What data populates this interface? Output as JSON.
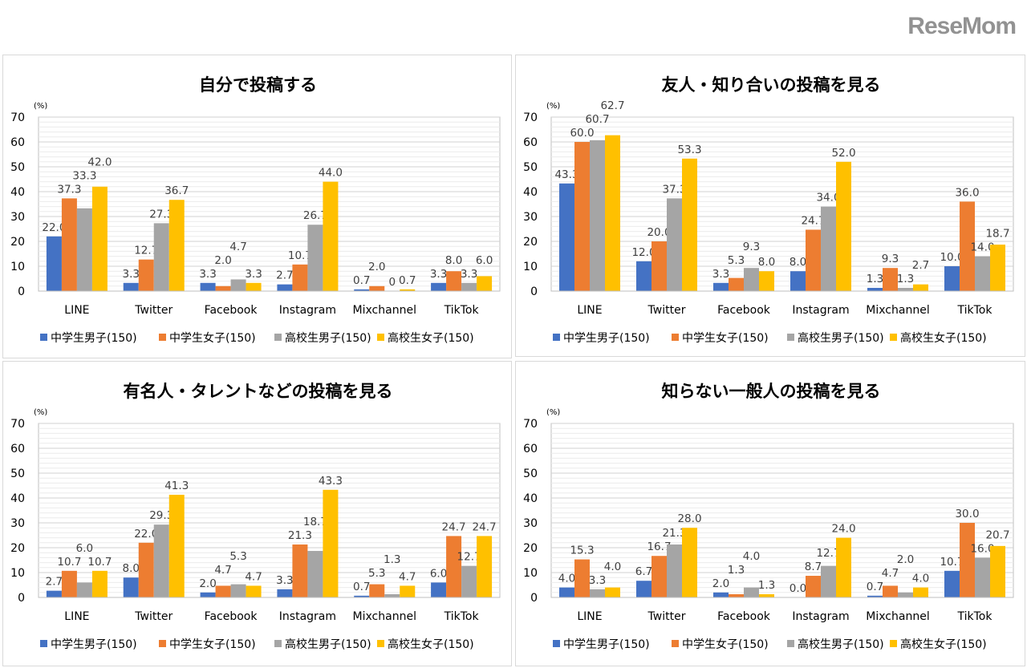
{
  "colors": {
    "series": [
      "#4472c4",
      "#ed7d31",
      "#a5a5a5",
      "#ffc000"
    ],
    "grid_major": "#d0d0d0",
    "grid_minor": "#ececec",
    "label": "#404040"
  },
  "watermark": "ReseMom",
  "chart_data": [
    {
      "type": "bar",
      "title": "自分で投稿する",
      "ylabel": "(%)",
      "ylim": [
        0,
        70
      ],
      "yticks": [
        "0",
        "10",
        "20",
        "30",
        "40",
        "50",
        "60",
        "70"
      ],
      "grid": true,
      "legend_position": "bottom",
      "categories": [
        "LINE",
        "Twitter",
        "Facebook",
        "Instagram",
        "Mixchannel",
        "TikTok"
      ],
      "series": [
        {
          "name": "中学生男子(150)",
          "values": [
            22.0,
            3.3,
            3.3,
            2.7,
            0.7,
            3.3
          ],
          "labels": [
            "22.0",
            "3.3",
            "3.3",
            "2.7",
            "0.7",
            "3.3"
          ]
        },
        {
          "name": "中学生女子(150)",
          "values": [
            37.3,
            12.7,
            2.0,
            10.7,
            2.0,
            8.0
          ],
          "labels": [
            "37.3",
            "12.7",
            "2.0",
            "10.7",
            "2.0",
            "8.0"
          ]
        },
        {
          "name": "高校生男子(150)",
          "values": [
            33.3,
            27.3,
            4.7,
            26.7,
            0,
            3.3
          ],
          "labels": [
            "33.3",
            "27.3",
            "4.7",
            "26.7",
            "0",
            "3.3"
          ]
        },
        {
          "name": "高校生女子(150)",
          "values": [
            42.0,
            36.7,
            3.3,
            44.0,
            0.7,
            6.0
          ],
          "labels": [
            "42.0",
            "36.7",
            "3.3",
            "44.0",
            "0.7",
            "6.0"
          ]
        }
      ]
    },
    {
      "type": "bar",
      "title": "友人・知り合いの投稿を見る",
      "ylabel": "(%)",
      "ylim": [
        0,
        70
      ],
      "yticks": [
        "0",
        "10",
        "20",
        "30",
        "40",
        "50",
        "60",
        "70"
      ],
      "grid": true,
      "legend_position": "bottom",
      "categories": [
        "LINE",
        "Twitter",
        "Facebook",
        "Instagram",
        "Mixchannel",
        "TikTok"
      ],
      "series": [
        {
          "name": "中学生男子(150)",
          "values": [
            43.3,
            12.0,
            3.3,
            8.0,
            1.3,
            10.0
          ],
          "labels": [
            "43.3",
            "12.0",
            "3.3",
            "8.0",
            "1.3",
            "10.0"
          ]
        },
        {
          "name": "中学生女子(150)",
          "values": [
            60.0,
            20.0,
            5.3,
            24.7,
            9.3,
            36.0
          ],
          "labels": [
            "60.0",
            "20.0",
            "5.3",
            "24.7",
            "9.3",
            "36.0"
          ]
        },
        {
          "name": "高校生男子(150)",
          "values": [
            60.7,
            37.3,
            9.3,
            34.0,
            1.3,
            14.0
          ],
          "labels": [
            "60.7",
            "37.3",
            "9.3",
            "34.0",
            "1.3",
            "14.0"
          ]
        },
        {
          "name": "高校生女子(150)",
          "values": [
            62.7,
            53.3,
            8.0,
            52.0,
            2.7,
            18.7
          ],
          "labels": [
            "62.7",
            "53.3",
            "8.0",
            "52.0",
            "2.7",
            "18.7"
          ]
        }
      ]
    },
    {
      "type": "bar",
      "title": "有名人・タレントなどの投稿を見る",
      "ylabel": "(%)",
      "ylim": [
        0,
        70
      ],
      "yticks": [
        "0",
        "10",
        "20",
        "30",
        "40",
        "50",
        "60",
        "70"
      ],
      "grid": true,
      "legend_position": "bottom",
      "categories": [
        "LINE",
        "Twitter",
        "Facebook",
        "Instagram",
        "Mixchannel",
        "TikTok"
      ],
      "series": [
        {
          "name": "中学生男子(150)",
          "values": [
            2.7,
            8.0,
            2.0,
            3.3,
            0.7,
            6.0
          ],
          "labels": [
            "2.7",
            "8.0",
            "2.0",
            "3.3",
            "0.7",
            "6.0"
          ]
        },
        {
          "name": "中学生女子(150)",
          "values": [
            10.7,
            22.0,
            4.7,
            21.3,
            5.3,
            24.7
          ],
          "labels": [
            "10.7",
            "22.0",
            "4.7",
            "21.3",
            "5.3",
            "24.7"
          ]
        },
        {
          "name": "高校生男子(150)",
          "values": [
            6.0,
            29.3,
            5.3,
            18.7,
            1.3,
            12.7
          ],
          "labels": [
            "6.0",
            "29.3",
            "5.3",
            "18.7",
            "1.3",
            "12.7"
          ]
        },
        {
          "name": "高校生女子(150)",
          "values": [
            10.7,
            41.3,
            4.7,
            43.3,
            4.7,
            24.7
          ],
          "labels": [
            "10.7",
            "41.3",
            "4.7",
            "43.3",
            "4.7",
            "24.7"
          ]
        }
      ]
    },
    {
      "type": "bar",
      "title": "知らない一般人の投稿を見る",
      "ylabel": "(%)",
      "ylim": [
        0,
        70
      ],
      "yticks": [
        "0",
        "10",
        "20",
        "30",
        "40",
        "50",
        "60",
        "70"
      ],
      "grid": true,
      "legend_position": "bottom",
      "categories": [
        "LINE",
        "Twitter",
        "Facebook",
        "Instagram",
        "Mixchannel",
        "TikTok"
      ],
      "series": [
        {
          "name": "中学生男子(150)",
          "values": [
            4.0,
            6.7,
            2.0,
            0.0,
            0.7,
            10.7
          ],
          "labels": [
            "4.0",
            "6.7",
            "2.0",
            "0.0",
            "0.7",
            "10.7"
          ]
        },
        {
          "name": "中学生女子(150)",
          "values": [
            15.3,
            16.7,
            1.3,
            8.7,
            4.7,
            30.0
          ],
          "labels": [
            "15.3",
            "16.7",
            "1.3",
            "8.7",
            "4.7",
            "30.0"
          ]
        },
        {
          "name": "高校生男子(150)",
          "values": [
            3.3,
            21.3,
            4.0,
            12.7,
            2.0,
            16.0
          ],
          "labels": [
            "3.3",
            "21.3",
            "4.0",
            "12.7",
            "2.0",
            "16.0"
          ]
        },
        {
          "name": "高校生女子(150)",
          "values": [
            4.0,
            28.0,
            1.3,
            24.0,
            4.0,
            20.7
          ],
          "labels": [
            "4.0",
            "28.0",
            "1.3",
            "24.0",
            "4.0",
            "20.7"
          ]
        }
      ]
    }
  ]
}
